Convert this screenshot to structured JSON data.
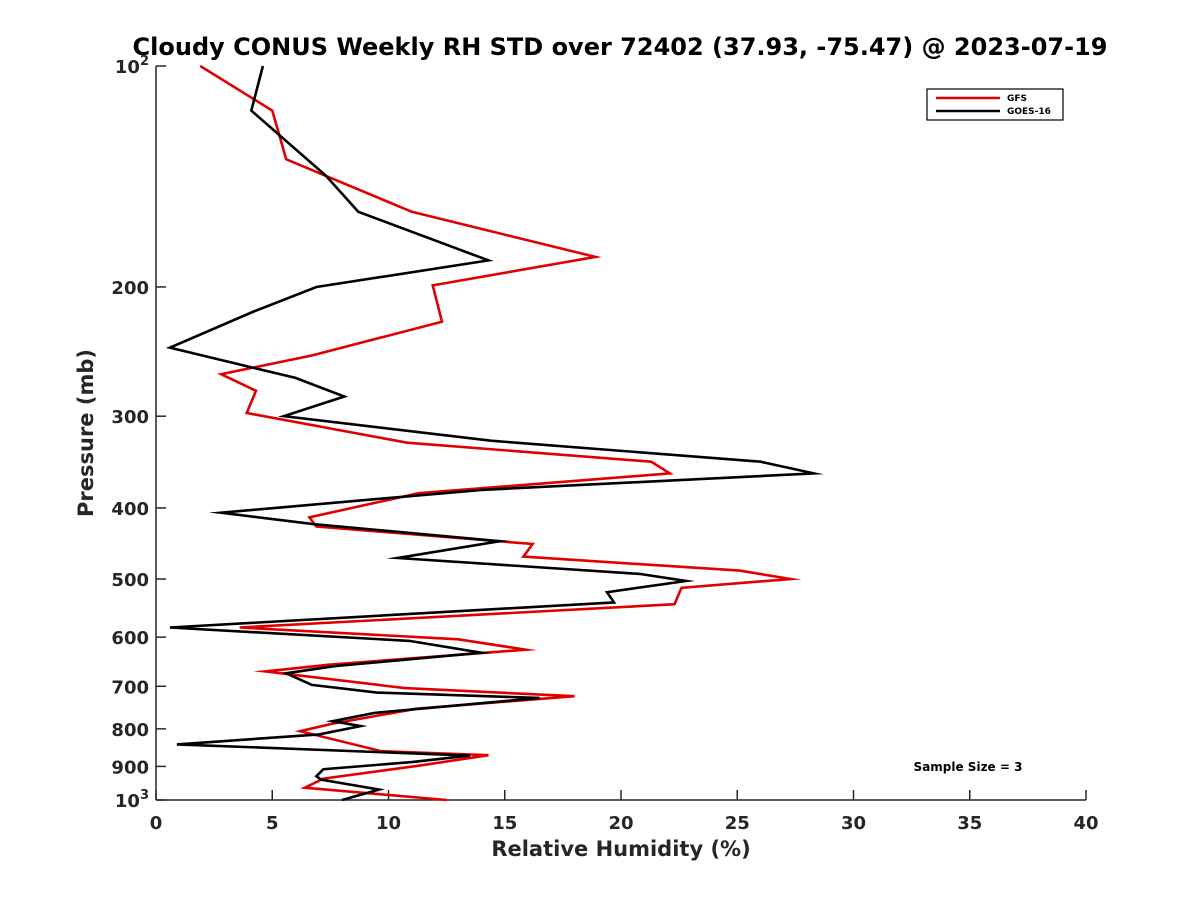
{
  "chart_data": {
    "type": "line",
    "title": "Cloudy CONUS Weekly RH STD over 72402 (37.93, -75.47) @ 2023-07-19",
    "xlabel": "Relative Humidity (%)",
    "ylabel": "Pressure (mb)",
    "xlim": [
      0,
      40
    ],
    "ylim": [
      100,
      1000
    ],
    "y_scale": "log",
    "y_reversed": true,
    "x_ticks": [
      "0",
      "5",
      "10",
      "15",
      "20",
      "25",
      "30",
      "35",
      "40"
    ],
    "y_ticks": [
      {
        "value": 100,
        "base": "10",
        "exp": "2"
      },
      {
        "value": 200,
        "label": "200"
      },
      {
        "value": 300,
        "label": "300"
      },
      {
        "value": 400,
        "label": "400"
      },
      {
        "value": 500,
        "label": "500"
      },
      {
        "value": 600,
        "label": "600"
      },
      {
        "value": 700,
        "label": "700"
      },
      {
        "value": 800,
        "label": "800"
      },
      {
        "value": 900,
        "label": "900"
      },
      {
        "value": 1000,
        "base": "10",
        "exp": "3"
      }
    ],
    "grid": false,
    "legend_position": "top-right",
    "annotation": "Sample Size = 3",
    "series": [
      {
        "name": "GFS",
        "color": "#e00000",
        "points": [
          [
            1.9,
            100
          ],
          [
            5.0,
            115
          ],
          [
            5.6,
            134
          ],
          [
            11.0,
            158
          ],
          [
            18.9,
            182
          ],
          [
            11.9,
            199
          ],
          [
            12.3,
            223
          ],
          [
            6.7,
            248
          ],
          [
            2.8,
            263
          ],
          [
            4.3,
            277
          ],
          [
            3.9,
            297
          ],
          [
            10.8,
            326
          ],
          [
            21.3,
            346
          ],
          [
            22.1,
            359
          ],
          [
            11.3,
            382
          ],
          [
            6.6,
            412
          ],
          [
            6.9,
            424
          ],
          [
            16.2,
            448
          ],
          [
            15.8,
            466
          ],
          [
            25.1,
            487
          ],
          [
            27.3,
            500
          ],
          [
            22.6,
            514
          ],
          [
            22.3,
            541
          ],
          [
            3.6,
            582
          ],
          [
            13.0,
            604
          ],
          [
            15.9,
            624
          ],
          [
            7.5,
            654
          ],
          [
            4.7,
            668
          ],
          [
            10.7,
            704
          ],
          [
            18.0,
            722
          ],
          [
            11.2,
            751
          ],
          [
            7.5,
            788
          ],
          [
            6.2,
            806
          ],
          [
            9.7,
            858
          ],
          [
            14.3,
            869
          ],
          [
            11.3,
            898
          ],
          [
            7.2,
            935
          ],
          [
            6.4,
            962
          ],
          [
            12.5,
            1000
          ]
        ]
      },
      {
        "name": "GOES-16",
        "color": "#000000",
        "points": [
          [
            4.6,
            100
          ],
          [
            4.1,
            115
          ],
          [
            7.3,
            141
          ],
          [
            8.7,
            158
          ],
          [
            14.3,
            184
          ],
          [
            6.9,
            200
          ],
          [
            4.2,
            216
          ],
          [
            0.6,
            242
          ],
          [
            6.0,
            266
          ],
          [
            8.1,
            282
          ],
          [
            5.5,
            300
          ],
          [
            14.4,
            324
          ],
          [
            26.0,
            346
          ],
          [
            28.3,
            359
          ],
          [
            14.0,
            378
          ],
          [
            2.8,
            406
          ],
          [
            6.8,
            421
          ],
          [
            14.8,
            444
          ],
          [
            10.4,
            468
          ],
          [
            20.8,
            492
          ],
          [
            22.8,
            503
          ],
          [
            19.4,
            521
          ],
          [
            19.7,
            538
          ],
          [
            0.6,
            582
          ],
          [
            10.9,
            607
          ],
          [
            14.0,
            630
          ],
          [
            7.7,
            657
          ],
          [
            5.6,
            672
          ],
          [
            6.7,
            697
          ],
          [
            9.5,
            714
          ],
          [
            16.5,
            726
          ],
          [
            9.4,
            761
          ],
          [
            7.6,
            781
          ],
          [
            8.8,
            793
          ],
          [
            7.0,
            814
          ],
          [
            0.9,
            840
          ],
          [
            13.5,
            870
          ],
          [
            11.0,
            888
          ],
          [
            7.2,
            908
          ],
          [
            6.9,
            928
          ],
          [
            7.1,
            938
          ],
          [
            9.6,
            968
          ],
          [
            8.0,
            1000
          ]
        ]
      }
    ]
  }
}
